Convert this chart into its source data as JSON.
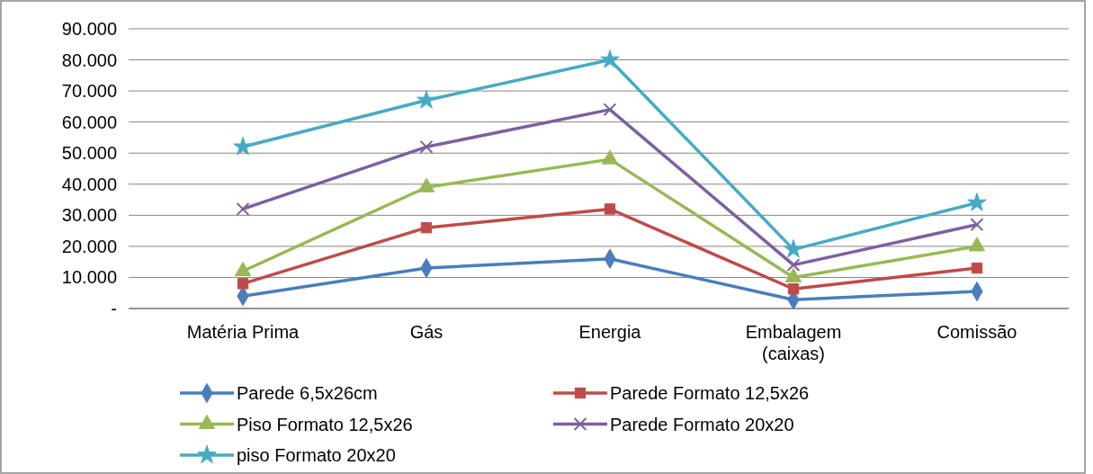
{
  "chart_data": {
    "type": "line",
    "categories": [
      "Matéria Prima",
      "Gás",
      "Energia",
      "Embalagem (caixas)",
      "Comissão"
    ],
    "series": [
      {
        "name": "Parede 6,5x26cm",
        "color": "#4a7ebb",
        "marker": "diamond",
        "values": [
          4000,
          13000,
          16000,
          2800,
          5500
        ]
      },
      {
        "name": "Parede Formato 12,5x26",
        "color": "#be4b48",
        "marker": "square",
        "values": [
          8000,
          26000,
          32000,
          6300,
          13000
        ]
      },
      {
        "name": "Piso Formato 12,5x26",
        "color": "#98b954",
        "marker": "triangle",
        "values": [
          12000,
          39000,
          48000,
          10000,
          20000
        ]
      },
      {
        "name": "Parede Formato 20x20",
        "color": "#7d60a0",
        "marker": "cross",
        "values": [
          32000,
          52000,
          64000,
          14000,
          27000
        ]
      },
      {
        "name": "piso Formato 20x20",
        "color": "#46aac5",
        "marker": "star",
        "values": [
          52000,
          67000,
          80000,
          19000,
          34000
        ]
      }
    ],
    "ylim": [
      0,
      90000
    ],
    "yticks": [
      {
        "value": 0,
        "label": "-"
      },
      {
        "value": 10000,
        "label": "10.000"
      },
      {
        "value": 20000,
        "label": "20.000"
      },
      {
        "value": 30000,
        "label": "30.000"
      },
      {
        "value": 40000,
        "label": "40.000"
      },
      {
        "value": 50000,
        "label": "50.000"
      },
      {
        "value": 60000,
        "label": "60.000"
      },
      {
        "value": 70000,
        "label": "70.000"
      },
      {
        "value": 80000,
        "label": "80.000"
      },
      {
        "value": 90000,
        "label": "90.000"
      }
    ],
    "grid": "y",
    "legend": "bottom",
    "line_style": "solid"
  }
}
